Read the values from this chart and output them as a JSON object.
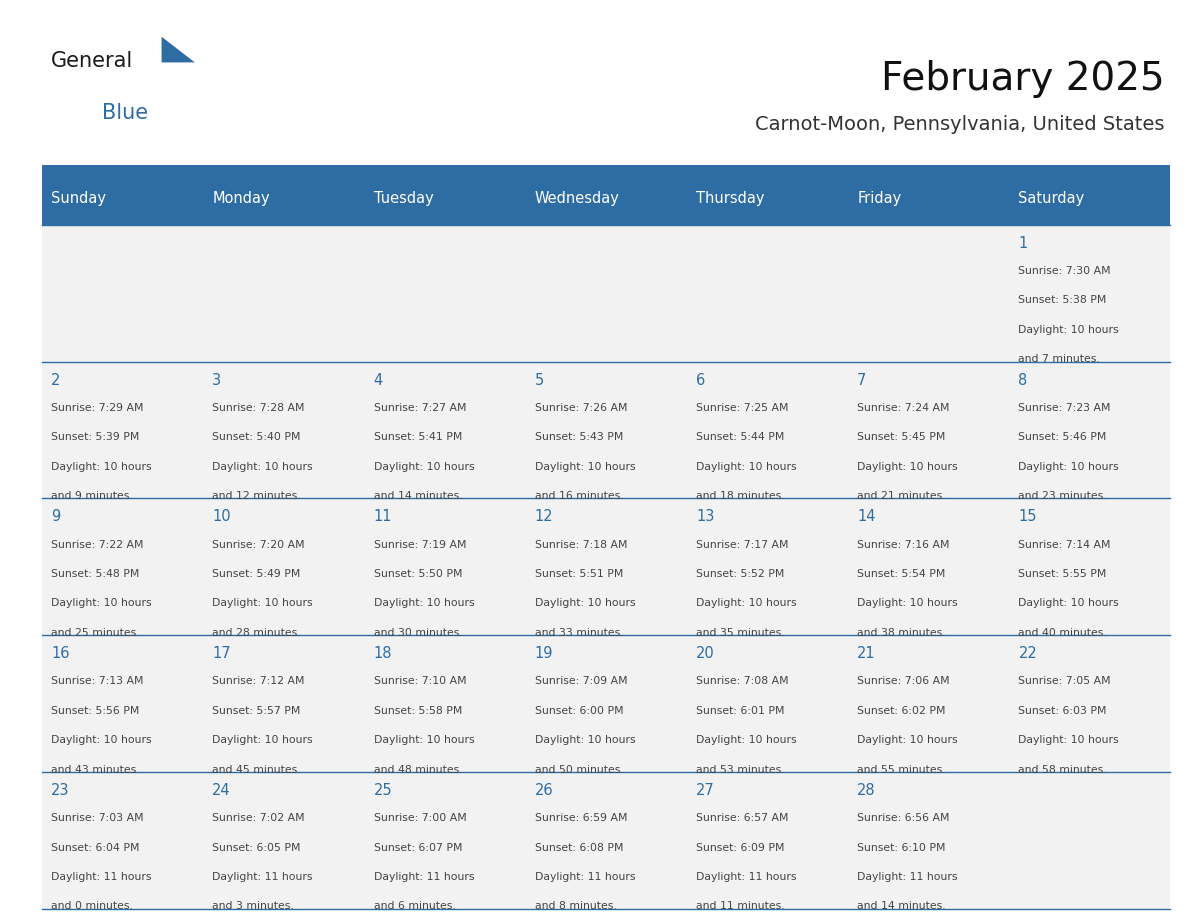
{
  "title": "February 2025",
  "subtitle": "Carnot-Moon, Pennsylvania, United States",
  "header_bg": "#2E6DA4",
  "header_text": "#FFFFFF",
  "cell_bg": "#F2F2F2",
  "separator_color": "#2E6DA4",
  "day_number_color": "#2E6DA4",
  "text_color": "#444444",
  "days_of_week": [
    "Sunday",
    "Monday",
    "Tuesday",
    "Wednesday",
    "Thursday",
    "Friday",
    "Saturday"
  ],
  "calendar": [
    [
      null,
      null,
      null,
      null,
      null,
      null,
      {
        "day": "1",
        "sunrise": "7:30 AM",
        "sunset": "5:38 PM",
        "daylight1": "10 hours",
        "daylight2": "and 7 minutes."
      }
    ],
    [
      {
        "day": "2",
        "sunrise": "7:29 AM",
        "sunset": "5:39 PM",
        "daylight1": "10 hours",
        "daylight2": "and 9 minutes."
      },
      {
        "day": "3",
        "sunrise": "7:28 AM",
        "sunset": "5:40 PM",
        "daylight1": "10 hours",
        "daylight2": "and 12 minutes."
      },
      {
        "day": "4",
        "sunrise": "7:27 AM",
        "sunset": "5:41 PM",
        "daylight1": "10 hours",
        "daylight2": "and 14 minutes."
      },
      {
        "day": "5",
        "sunrise": "7:26 AM",
        "sunset": "5:43 PM",
        "daylight1": "10 hours",
        "daylight2": "and 16 minutes."
      },
      {
        "day": "6",
        "sunrise": "7:25 AM",
        "sunset": "5:44 PM",
        "daylight1": "10 hours",
        "daylight2": "and 18 minutes."
      },
      {
        "day": "7",
        "sunrise": "7:24 AM",
        "sunset": "5:45 PM",
        "daylight1": "10 hours",
        "daylight2": "and 21 minutes."
      },
      {
        "day": "8",
        "sunrise": "7:23 AM",
        "sunset": "5:46 PM",
        "daylight1": "10 hours",
        "daylight2": "and 23 minutes."
      }
    ],
    [
      {
        "day": "9",
        "sunrise": "7:22 AM",
        "sunset": "5:48 PM",
        "daylight1": "10 hours",
        "daylight2": "and 25 minutes."
      },
      {
        "day": "10",
        "sunrise": "7:20 AM",
        "sunset": "5:49 PM",
        "daylight1": "10 hours",
        "daylight2": "and 28 minutes."
      },
      {
        "day": "11",
        "sunrise": "7:19 AM",
        "sunset": "5:50 PM",
        "daylight1": "10 hours",
        "daylight2": "and 30 minutes."
      },
      {
        "day": "12",
        "sunrise": "7:18 AM",
        "sunset": "5:51 PM",
        "daylight1": "10 hours",
        "daylight2": "and 33 minutes."
      },
      {
        "day": "13",
        "sunrise": "7:17 AM",
        "sunset": "5:52 PM",
        "daylight1": "10 hours",
        "daylight2": "and 35 minutes."
      },
      {
        "day": "14",
        "sunrise": "7:16 AM",
        "sunset": "5:54 PM",
        "daylight1": "10 hours",
        "daylight2": "and 38 minutes."
      },
      {
        "day": "15",
        "sunrise": "7:14 AM",
        "sunset": "5:55 PM",
        "daylight1": "10 hours",
        "daylight2": "and 40 minutes."
      }
    ],
    [
      {
        "day": "16",
        "sunrise": "7:13 AM",
        "sunset": "5:56 PM",
        "daylight1": "10 hours",
        "daylight2": "and 43 minutes."
      },
      {
        "day": "17",
        "sunrise": "7:12 AM",
        "sunset": "5:57 PM",
        "daylight1": "10 hours",
        "daylight2": "and 45 minutes."
      },
      {
        "day": "18",
        "sunrise": "7:10 AM",
        "sunset": "5:58 PM",
        "daylight1": "10 hours",
        "daylight2": "and 48 minutes."
      },
      {
        "day": "19",
        "sunrise": "7:09 AM",
        "sunset": "6:00 PM",
        "daylight1": "10 hours",
        "daylight2": "and 50 minutes."
      },
      {
        "day": "20",
        "sunrise": "7:08 AM",
        "sunset": "6:01 PM",
        "daylight1": "10 hours",
        "daylight2": "and 53 minutes."
      },
      {
        "day": "21",
        "sunrise": "7:06 AM",
        "sunset": "6:02 PM",
        "daylight1": "10 hours",
        "daylight2": "and 55 minutes."
      },
      {
        "day": "22",
        "sunrise": "7:05 AM",
        "sunset": "6:03 PM",
        "daylight1": "10 hours",
        "daylight2": "and 58 minutes."
      }
    ],
    [
      {
        "day": "23",
        "sunrise": "7:03 AM",
        "sunset": "6:04 PM",
        "daylight1": "11 hours",
        "daylight2": "and 0 minutes."
      },
      {
        "day": "24",
        "sunrise": "7:02 AM",
        "sunset": "6:05 PM",
        "daylight1": "11 hours",
        "daylight2": "and 3 minutes."
      },
      {
        "day": "25",
        "sunrise": "7:00 AM",
        "sunset": "6:07 PM",
        "daylight1": "11 hours",
        "daylight2": "and 6 minutes."
      },
      {
        "day": "26",
        "sunrise": "6:59 AM",
        "sunset": "6:08 PM",
        "daylight1": "11 hours",
        "daylight2": "and 8 minutes."
      },
      {
        "day": "27",
        "sunrise": "6:57 AM",
        "sunset": "6:09 PM",
        "daylight1": "11 hours",
        "daylight2": "and 11 minutes."
      },
      {
        "day": "28",
        "sunrise": "6:56 AM",
        "sunset": "6:10 PM",
        "daylight1": "11 hours",
        "daylight2": "and 14 minutes."
      },
      null
    ]
  ],
  "logo_text1": "General",
  "logo_text2": "Blue",
  "logo_color1": "#1a1a1a",
  "logo_color2": "#2E6DA4",
  "logo_triangle_color": "#2E6DA4",
  "figsize": [
    11.88,
    9.18
  ],
  "dpi": 100
}
